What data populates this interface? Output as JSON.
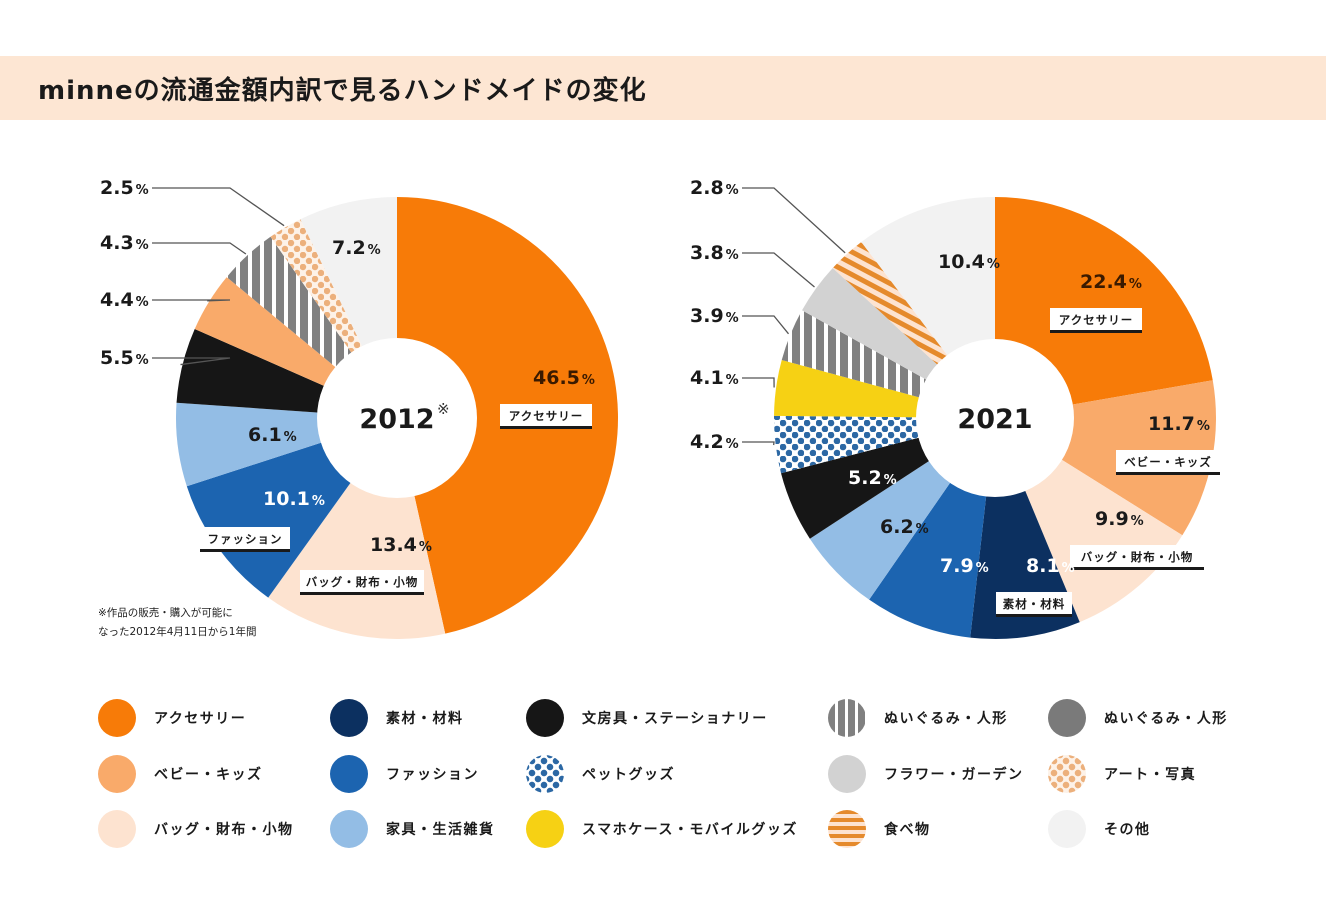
{
  "header": {
    "title": "minneの流通金額内訳で見るハンドメイドの変化"
  },
  "note": {
    "line1": "※作品の販売・購入が可能に",
    "line2": "なった2012年4月11日から1年間"
  },
  "categories": {
    "accessory": {
      "label": "アクセサリー",
      "color": "#f77b08",
      "pattern": "solid"
    },
    "baby": {
      "label": "ベビー・キッズ",
      "color": "#f9aa6a",
      "pattern": "solid"
    },
    "bag": {
      "label": "バッグ・財布・小物",
      "color": "#fde3d0",
      "pattern": "solid"
    },
    "material": {
      "label": "素材・材料",
      "color": "#0c3060",
      "pattern": "solid"
    },
    "fashion": {
      "label": "ファッション",
      "color": "#1c64b0",
      "pattern": "solid"
    },
    "furniture": {
      "label": "家具・生活雑貨",
      "color": "#93bde5",
      "pattern": "solid"
    },
    "stationery": {
      "label": "文房具・ステーショナリー",
      "color": "#161616",
      "pattern": "solid"
    },
    "pet": {
      "label": "ペットグッズ",
      "color": "#2c68a4",
      "pattern": "dots"
    },
    "phone": {
      "label": "スマホケース・モバイルグッズ",
      "color": "#f6d114",
      "pattern": "solid"
    },
    "plush": {
      "label": "ぬいぐるみ・人形",
      "color": "#808080",
      "pattern": "vstripes"
    },
    "plush2": {
      "label": "ぬいぐるみ・人形",
      "color": "#7a7a7a",
      "pattern": "solid"
    },
    "flower": {
      "label": "フラワー・ガーデン",
      "color": "#d2d2d2",
      "pattern": "solid"
    },
    "art": {
      "label": "アート・写真",
      "color": "#ecb07c",
      "pattern": "dots"
    },
    "food": {
      "label": "食べ物",
      "color": "#e58a2c",
      "pattern": "hstripes"
    },
    "other": {
      "label": "その他",
      "color": "#f2f2f2",
      "pattern": "solid"
    }
  },
  "legend_order": [
    [
      "accessory",
      "baby",
      "bag"
    ],
    [
      "material",
      "fashion",
      "furniture"
    ],
    [
      "stationery",
      "pet",
      "phone"
    ],
    [
      "plush",
      "flower",
      "food"
    ],
    [
      "plush2",
      "art",
      "other"
    ]
  ],
  "chart_data": [
    {
      "type": "pie",
      "title": "2012",
      "center_label": "2012",
      "center_mark": "※",
      "unit": "%",
      "start": "top",
      "direction": "clockwise",
      "slices": [
        {
          "key": "accessory",
          "value": 46.5,
          "label_box": "アクセサリー"
        },
        {
          "key": "bag",
          "value": 13.4,
          "label_box": "バッグ・財布・小物"
        },
        {
          "key": "fashion",
          "value": 10.1,
          "label_box": "ファッション"
        },
        {
          "key": "furniture",
          "value": 6.1
        },
        {
          "key": "stationery",
          "value": 5.5,
          "outside": true
        },
        {
          "key": "baby",
          "value": 4.4,
          "outside": true
        },
        {
          "key": "plush",
          "value": 4.3,
          "outside": true
        },
        {
          "key": "art",
          "value": 2.5,
          "outside": true
        },
        {
          "key": "other",
          "value": 7.2
        }
      ]
    },
    {
      "type": "pie",
      "title": "2021",
      "center_label": "2021",
      "center_mark": "",
      "unit": "%",
      "start": "top",
      "direction": "clockwise",
      "slices": [
        {
          "key": "accessory",
          "value": 22.4,
          "label_box": "アクセサリー"
        },
        {
          "key": "baby",
          "value": 11.7,
          "label_box": "ベビー・キッズ"
        },
        {
          "key": "bag",
          "value": 9.9,
          "label_box": "バッグ・財布・小物"
        },
        {
          "key": "material",
          "value": 8.1,
          "label_box": "素材・材料"
        },
        {
          "key": "fashion",
          "value": 7.9
        },
        {
          "key": "furniture",
          "value": 6.2
        },
        {
          "key": "stationery",
          "value": 5.2
        },
        {
          "key": "pet",
          "value": 4.2,
          "outside": true
        },
        {
          "key": "phone",
          "value": 4.1,
          "outside": true
        },
        {
          "key": "plush",
          "value": 3.9,
          "outside": true
        },
        {
          "key": "flower",
          "value": 3.8,
          "outside": true
        },
        {
          "key": "food",
          "value": 2.8,
          "outside": true
        },
        {
          "key": "other",
          "value": 10.4
        }
      ]
    }
  ]
}
